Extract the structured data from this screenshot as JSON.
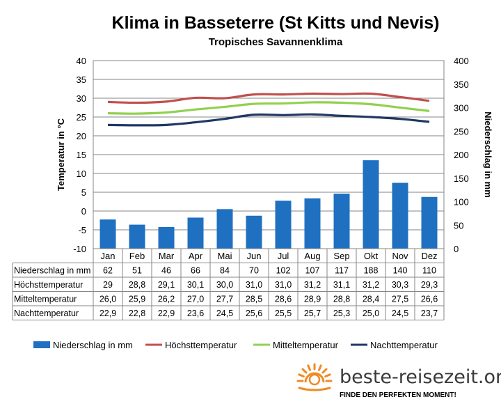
{
  "chart_data": {
    "type": "bar+line",
    "title": "Klima in Basseterre (St Kitts und Nevis)",
    "subtitle": "Tropisches Savannenklima",
    "ylabel_left": "Temperatur in °C",
    "ylabel_right": "Niederschlag in mm",
    "ylim_left": [
      -10,
      40
    ],
    "yticks_left": [
      "40",
      "35",
      "30",
      "25",
      "20",
      "15",
      "10",
      "5",
      "0",
      "-5",
      "-10"
    ],
    "ylim_right": [
      0,
      400
    ],
    "yticks_right": [
      "400",
      "350",
      "300",
      "250",
      "200",
      "150",
      "100",
      "50",
      "0"
    ],
    "grid": true,
    "legend_position": "bottom",
    "categories": [
      "Jan",
      "Feb",
      "Mar",
      "Apr",
      "Mai",
      "Jun",
      "Jul",
      "Aug",
      "Sep",
      "Okt",
      "Nov",
      "Dez"
    ],
    "series": [
      {
        "name": "Niederschlag in mm",
        "type": "bar",
        "axis": "right",
        "color": "#1f70c1",
        "values": [
          62,
          51,
          46,
          66,
          84,
          70,
          102,
          107,
          117,
          188,
          140,
          110
        ],
        "labels": [
          "62",
          "51",
          "46",
          "66",
          "84",
          "70",
          "102",
          "107",
          "117",
          "188",
          "140",
          "110"
        ]
      },
      {
        "name": "Höchsttemperatur",
        "type": "line",
        "axis": "left",
        "color": "#c0504d",
        "values": [
          29,
          28.8,
          29.1,
          30.1,
          30.0,
          31.0,
          31.0,
          31.2,
          31.1,
          31.2,
          30.3,
          29.3
        ],
        "labels": [
          "29",
          "28,8",
          "29,1",
          "30,1",
          "30,0",
          "31,0",
          "31,0",
          "31,2",
          "31,1",
          "31,2",
          "30,3",
          "29,3"
        ]
      },
      {
        "name": "Mitteltemperatur",
        "type": "line",
        "axis": "left",
        "color": "#92d050",
        "values": [
          26.0,
          25.9,
          26.2,
          27.0,
          27.7,
          28.5,
          28.6,
          28.9,
          28.8,
          28.4,
          27.5,
          26.6
        ],
        "labels": [
          "26,0",
          "25,9",
          "26,2",
          "27,0",
          "27,7",
          "28,5",
          "28,6",
          "28,9",
          "28,8",
          "28,4",
          "27,5",
          "26,6"
        ]
      },
      {
        "name": "Nachttemperatur",
        "type": "line",
        "axis": "left",
        "color": "#1f3864",
        "values": [
          22.9,
          22.8,
          22.9,
          23.6,
          24.5,
          25.6,
          25.5,
          25.7,
          25.3,
          25.0,
          24.5,
          23.7
        ],
        "labels": [
          "22,9",
          "22,8",
          "22,9",
          "23,6",
          "24,5",
          "25,6",
          "25,5",
          "25,7",
          "25,3",
          "25,0",
          "24,5",
          "23,7"
        ]
      }
    ]
  },
  "brand": {
    "name": "beste-reisezeit.org",
    "slogan": "FINDE DEN PERFEKTEN MOMENT!",
    "sun_color": "#f08a24"
  }
}
